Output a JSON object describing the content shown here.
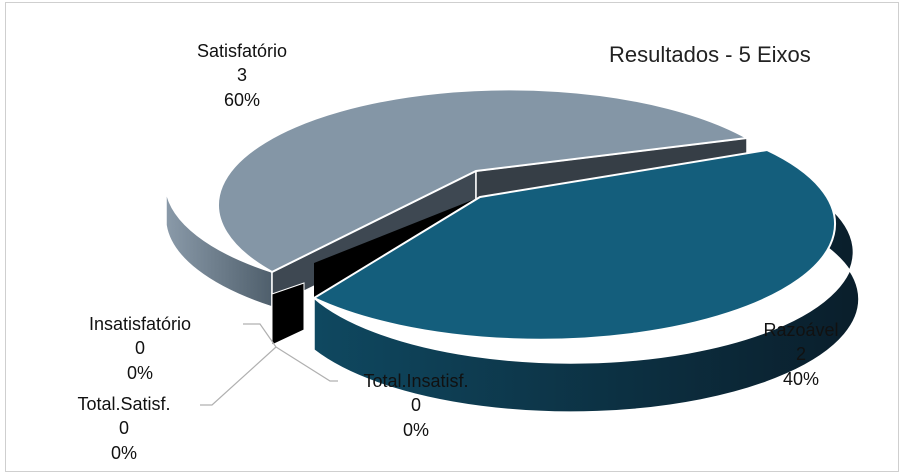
{
  "chart_data": {
    "type": "pie",
    "title": "Resultados - 5 Eixos",
    "slices": [
      {
        "name": "Satisfatório",
        "value": 3,
        "percent": "60%",
        "color": "#8496a6"
      },
      {
        "name": "Razoável",
        "value": 2,
        "percent": "40%",
        "color": "#145e7c"
      },
      {
        "name": "Insatisfatório",
        "value": 0,
        "percent": "0%",
        "color": "#000000"
      },
      {
        "name": "Total.Satisf.",
        "value": 0,
        "percent": "0%",
        "color": "#000000"
      },
      {
        "name": "Total.Insatisf.",
        "value": 0,
        "percent": "0%",
        "color": "#000000"
      }
    ],
    "style": "3d-exploded"
  }
}
